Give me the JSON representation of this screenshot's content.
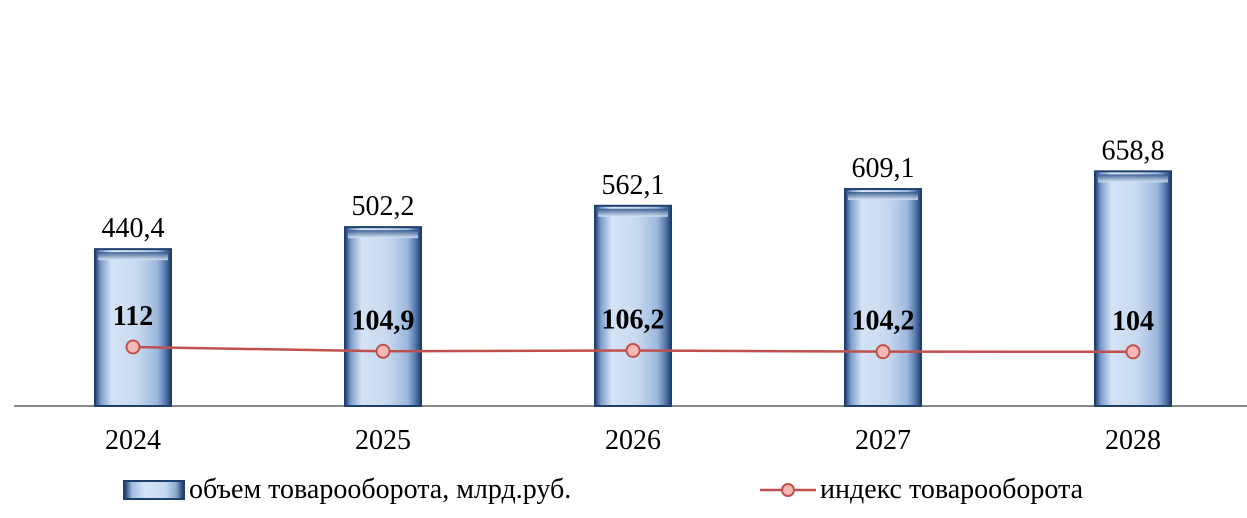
{
  "chart_data": {
    "type": "bar",
    "categories": [
      "2024",
      "2025",
      "2026",
      "2027",
      "2028"
    ],
    "series": [
      {
        "name": "объем товарооборота, млрд.руб.",
        "type": "bar",
        "values": [
          440.4,
          502.2,
          562.1,
          609.1,
          658.8
        ],
        "labels": [
          "440,4",
          "502,2",
          "562,1",
          "609,1",
          "658,8"
        ],
        "color": "#c9dbf1"
      },
      {
        "name": "индекс товарооборота",
        "type": "line",
        "values": [
          112,
          104.9,
          106.2,
          104.2,
          104
        ],
        "labels": [
          "112",
          "104,9",
          "106,2",
          "104,2",
          "104"
        ],
        "color": "#c0504d"
      }
    ],
    "legend_position": "bottom",
    "grid": false
  }
}
